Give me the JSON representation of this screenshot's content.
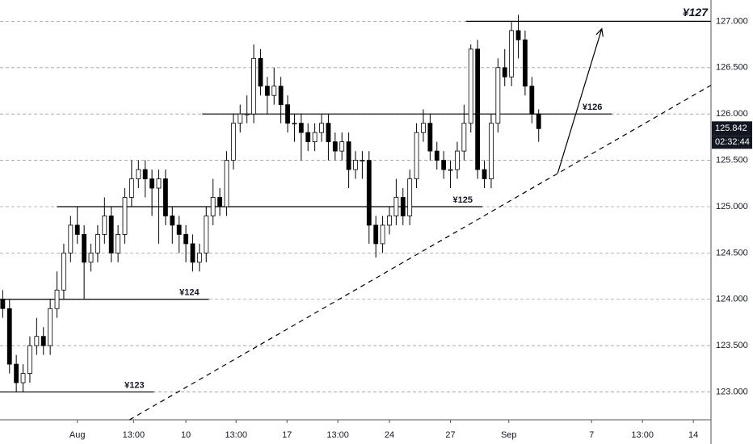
{
  "chart_data": {
    "type": "candlestick",
    "x": [
      0,
      1,
      2,
      3,
      4,
      5,
      6,
      7,
      8,
      9,
      10,
      11,
      12,
      13,
      14,
      15,
      16,
      17,
      18,
      19,
      20,
      21,
      22,
      23,
      24,
      25,
      26,
      27,
      28,
      29,
      30,
      31,
      32,
      33,
      34,
      35,
      36,
      37,
      38,
      39,
      40,
      41,
      42,
      43,
      44,
      45,
      46,
      47,
      48,
      49,
      50,
      51,
      52,
      53,
      54,
      55,
      56,
      57,
      58,
      59,
      60,
      61,
      62,
      63,
      64,
      65,
      66,
      67,
      68,
      69,
      70,
      71,
      72,
      73,
      74,
      75,
      76,
      77,
      78,
      79
    ],
    "open": [
      124.0,
      123.9,
      123.3,
      123.1,
      123.2,
      123.5,
      123.6,
      123.5,
      123.9,
      124.1,
      124.5,
      124.8,
      124.7,
      124.4,
      124.5,
      124.7,
      124.9,
      124.5,
      124.7,
      125.1,
      125.3,
      125.4,
      125.3,
      125.2,
      125.3,
      124.9,
      124.8,
      124.7,
      124.6,
      124.4,
      124.5,
      124.9,
      125.1,
      125.0,
      125.5,
      125.9,
      126.0,
      126.0,
      126.6,
      126.3,
      126.2,
      126.3,
      126.1,
      125.9,
      125.9,
      125.8,
      125.7,
      125.8,
      125.9,
      125.7,
      125.6,
      125.7,
      125.4,
      125.5,
      125.5,
      124.8,
      124.6,
      124.8,
      124.9,
      125.1,
      124.9,
      125.3,
      125.8,
      125.9,
      125.6,
      125.5,
      125.4,
      125.4,
      125.6,
      125.9,
      126.7,
      125.4,
      125.3,
      125.9,
      126.5,
      126.4,
      126.9,
      126.8,
      126.3,
      126.0
    ],
    "high": [
      124.1,
      124.0,
      123.4,
      123.3,
      123.6,
      123.8,
      123.7,
      124.0,
      124.3,
      124.6,
      124.9,
      125.0,
      124.8,
      124.6,
      124.8,
      125.1,
      125.0,
      124.8,
      125.2,
      125.5,
      125.5,
      125.5,
      125.4,
      125.4,
      125.4,
      125.0,
      124.9,
      124.8,
      124.7,
      124.6,
      125.0,
      125.3,
      125.2,
      125.6,
      126.0,
      126.1,
      126.2,
      126.75,
      126.7,
      126.4,
      126.5,
      126.4,
      126.2,
      126.0,
      126.0,
      125.9,
      125.9,
      126.0,
      126.0,
      125.8,
      125.8,
      125.8,
      125.6,
      125.6,
      125.6,
      124.9,
      124.9,
      125.0,
      125.3,
      125.2,
      125.4,
      125.9,
      126.05,
      126.0,
      125.7,
      125.6,
      125.5,
      125.7,
      126.1,
      126.75,
      126.8,
      125.5,
      126.0,
      126.6,
      126.7,
      127.0,
      127.07,
      126.9,
      126.4,
      126.05
    ],
    "low": [
      123.8,
      123.2,
      123.0,
      123.0,
      123.1,
      123.4,
      123.4,
      123.4,
      123.8,
      124.0,
      124.4,
      124.6,
      124.0,
      124.3,
      124.4,
      124.6,
      124.4,
      124.4,
      124.6,
      125.0,
      125.2,
      125.1,
      124.9,
      124.6,
      124.8,
      124.6,
      124.5,
      124.4,
      124.3,
      124.3,
      124.4,
      124.8,
      124.9,
      124.9,
      125.4,
      125.8,
      125.9,
      125.9,
      126.2,
      126.0,
      126.1,
      125.9,
      125.8,
      125.7,
      125.5,
      125.6,
      125.6,
      125.7,
      125.5,
      125.5,
      125.5,
      125.2,
      125.3,
      125.3,
      124.6,
      124.45,
      124.5,
      124.7,
      124.8,
      124.8,
      124.8,
      125.2,
      125.7,
      125.5,
      125.4,
      125.3,
      125.2,
      125.3,
      125.5,
      125.8,
      125.3,
      125.2,
      125.2,
      125.8,
      126.3,
      126.3,
      126.6,
      126.2,
      125.9,
      125.7
    ],
    "close": [
      123.9,
      123.3,
      123.1,
      123.2,
      123.5,
      123.6,
      123.5,
      123.9,
      124.1,
      124.5,
      124.8,
      124.7,
      124.4,
      124.5,
      124.7,
      124.9,
      124.5,
      124.7,
      125.1,
      125.3,
      125.4,
      125.3,
      125.2,
      125.3,
      124.9,
      124.8,
      124.7,
      124.6,
      124.4,
      124.5,
      124.9,
      125.1,
      125.0,
      125.5,
      125.9,
      126.0,
      126.0,
      126.6,
      126.3,
      126.2,
      126.3,
      126.1,
      125.9,
      125.9,
      125.8,
      125.7,
      125.8,
      125.9,
      125.7,
      125.6,
      125.7,
      125.4,
      125.5,
      125.5,
      124.8,
      124.6,
      124.8,
      124.9,
      125.1,
      124.9,
      125.3,
      125.8,
      125.9,
      125.6,
      125.5,
      125.4,
      125.4,
      125.6,
      125.9,
      126.7,
      125.4,
      125.3,
      125.9,
      126.5,
      126.4,
      126.9,
      126.8,
      126.3,
      126.0,
      125.842
    ],
    "up_color": "#ffffff",
    "down_color": "#000000",
    "edge_color": "#000000",
    "xlim": [
      -0.4,
      104.4
    ],
    "ylim": [
      122.7,
      127.23
    ],
    "xticks": [
      {
        "value": 11,
        "label": "Aug"
      },
      {
        "value": 19.3,
        "label": "13:00"
      },
      {
        "value": 27,
        "label": "10"
      },
      {
        "value": 34.4,
        "label": "13:00"
      },
      {
        "value": 41.9,
        "label": "17"
      },
      {
        "value": 49.4,
        "label": "13:00"
      },
      {
        "value": 57,
        "label": "24"
      },
      {
        "value": 66,
        "label": "27"
      },
      {
        "value": 74.6,
        "label": "Sep"
      },
      {
        "value": 86.8,
        "label": "7"
      },
      {
        "value": 94.3,
        "label": "13:00"
      },
      {
        "value": 101.8,
        "label": "14"
      }
    ],
    "yticks": [
      {
        "value": 123,
        "label": "123.000"
      },
      {
        "value": 123.5,
        "label": "123.500"
      },
      {
        "value": 124,
        "label": "124.000"
      },
      {
        "value": 124.5,
        "label": "124.500"
      },
      {
        "value": 125,
        "label": "125.000"
      },
      {
        "value": 125.5,
        "label": "125.500"
      },
      {
        "value": 126,
        "label": "126.000"
      },
      {
        "value": 126.5,
        "label": "126.500"
      },
      {
        "value": 127,
        "label": "127.000"
      }
    ],
    "grid": true,
    "levels": [
      {
        "value": 123,
        "label": "¥123",
        "x0": -0.4,
        "x1": 22.3
      },
      {
        "value": 124,
        "label": "¥124",
        "x0": -0.4,
        "x1": 30.4
      },
      {
        "value": 125,
        "label": "¥125",
        "x0": 8,
        "x1": 70.7
      },
      {
        "value": 126,
        "label": "¥126",
        "x0": 29.4,
        "x1": 89.8
      },
      {
        "value": 127,
        "label": "¥127",
        "x0": 68.3,
        "x1": 104.4
      }
    ],
    "trendline": {
      "x": [
        18.7,
        104.4
      ],
      "y": [
        122.7,
        126.31
      ]
    },
    "arrow": {
      "x": [
        81.8,
        88.3
      ],
      "y": [
        125.36,
        126.92
      ]
    },
    "last_price_label": "125.842",
    "countdown": "02:32:44"
  }
}
